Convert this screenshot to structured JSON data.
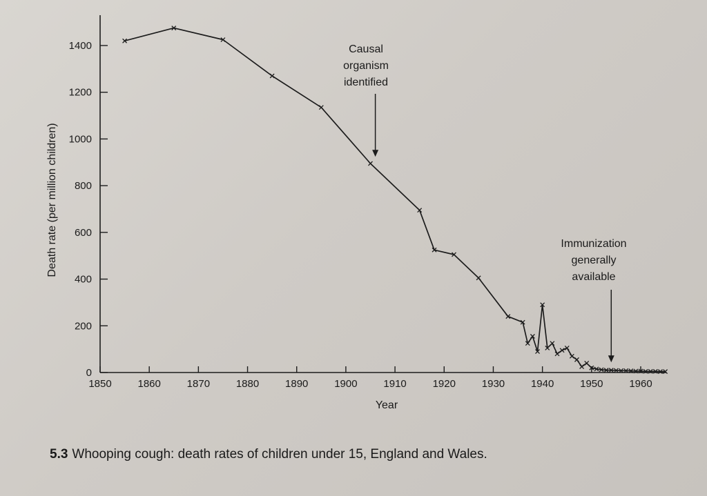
{
  "caption": {
    "figure_number": "5.3",
    "text": "Whooping cough: death rates of children under 15, England and Wales."
  },
  "chart_data": {
    "type": "line",
    "title": "Whooping cough: death rates of children under 15, England and Wales.",
    "xlabel": "Year",
    "ylabel": "Death rate (per million children)",
    "xlim": [
      1850,
      1967
    ],
    "ylim": [
      0,
      1450
    ],
    "x_ticks": [
      1850,
      1860,
      1870,
      1880,
      1890,
      1900,
      1910,
      1920,
      1930,
      1940,
      1950,
      1960
    ],
    "y_ticks": [
      0,
      200,
      400,
      600,
      800,
      1000,
      1200,
      1400
    ],
    "series": [
      {
        "name": "Death rate",
        "marker": "x",
        "x": [
          1855,
          1865,
          1875,
          1885,
          1895,
          1905,
          1915,
          1918,
          1922,
          1927,
          1933,
          1936,
          1937,
          1938,
          1939,
          1940,
          1941,
          1942,
          1943,
          1944,
          1945,
          1946,
          1947,
          1948,
          1949,
          1950,
          1951,
          1952,
          1953,
          1954,
          1955,
          1956,
          1957,
          1958,
          1959,
          1960,
          1961,
          1962,
          1963,
          1964,
          1965
        ],
        "values": [
          1420,
          1475,
          1425,
          1270,
          1135,
          895,
          695,
          525,
          505,
          405,
          240,
          215,
          125,
          155,
          90,
          290,
          105,
          125,
          80,
          95,
          105,
          70,
          55,
          25,
          40,
          20,
          15,
          12,
          10,
          10,
          9,
          8,
          8,
          7,
          6,
          6,
          5,
          5,
          5,
          4,
          4
        ]
      }
    ],
    "annotations": [
      {
        "lines": [
          "Causal",
          "organism",
          "identified"
        ],
        "x": 1906,
        "y": 900
      },
      {
        "lines": [
          "Immunization",
          "generally",
          "available"
        ],
        "x": 1954,
        "y": 20
      }
    ]
  }
}
